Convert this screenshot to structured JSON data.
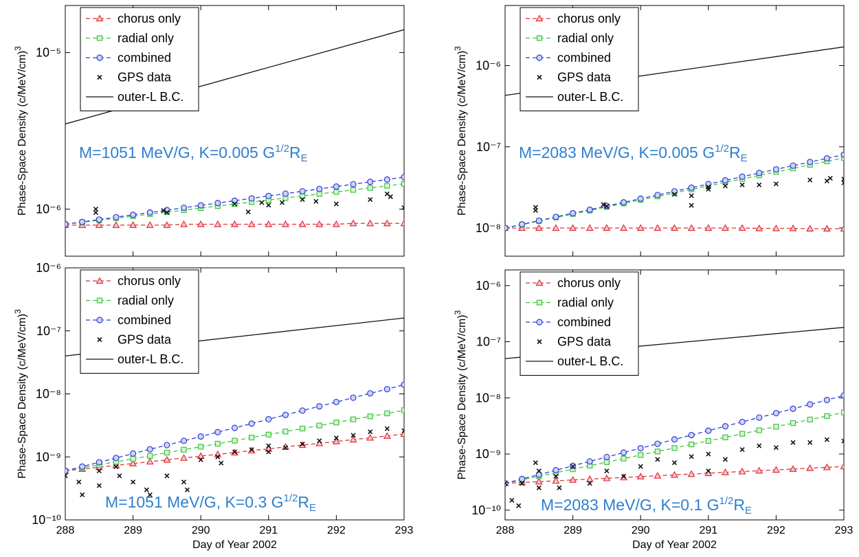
{
  "chart_data": [
    {
      "type": "line",
      "yscale": "log",
      "legend": "upper left",
      "ylabel": "Phase-Space Density  (c/MeV/cm)",
      "ylabel_sup": "3",
      "annotation": {
        "text": "M=1051 MeV/G,  K=0.005 G",
        "sup": "1/2",
        "unit": "R",
        "sub": "E"
      },
      "xlim": [
        288,
        293
      ],
      "xticks": [
        288,
        289,
        290,
        291,
        292,
        293
      ],
      "xtick_labels": false,
      "ylim": [
        5e-07,
        2e-05
      ],
      "yticks": [
        {
          "value": 1e-06,
          "label": "10⁻⁶"
        },
        {
          "value": 1e-05,
          "label": "10⁻⁵"
        }
      ],
      "x": [
        288,
        288.25,
        288.5,
        288.75,
        289,
        289.25,
        289.5,
        289.75,
        290,
        290.25,
        290.5,
        290.75,
        291,
        291.25,
        291.5,
        291.75,
        292,
        292.25,
        292.5,
        292.75,
        293
      ],
      "series": [
        {
          "name": "chorus only",
          "color": "#e0303a",
          "marker": "triangle",
          "line": "dashed",
          "values": [
            7.9e-07,
            7.9e-07,
            7.9e-07,
            7.9e-07,
            7.9e-07,
            7.9e-07,
            7.9e-07,
            8e-07,
            8e-07,
            8e-07,
            8e-07,
            8e-07,
            8e-07,
            8e-07,
            8e-07,
            8e-07,
            8e-07,
            8.1e-07,
            8.1e-07,
            8.1e-07,
            8.1e-07
          ]
        },
        {
          "name": "radial only",
          "color": "#3ec43e",
          "marker": "square",
          "line": "dashed",
          "values": [
            8e-07,
            8.24e-07,
            8.49e-07,
            8.75e-07,
            9.01e-07,
            9.28e-07,
            9.56e-07,
            9.85e-07,
            1.015e-06,
            1.046e-06,
            1.077e-06,
            1.11e-06,
            1.143e-06,
            1.178e-06,
            1.213e-06,
            1.25e-06,
            1.287e-06,
            1.326e-06,
            1.366e-06,
            1.408e-06,
            1.45e-06
          ]
        },
        {
          "name": "combined",
          "color": "#2b3fd6",
          "marker": "circle",
          "line": "dashed",
          "values": [
            8e-07,
            8.28e-07,
            8.57e-07,
            8.88e-07,
            9.19e-07,
            9.51e-07,
            9.85e-07,
            1.02e-06,
            1.056e-06,
            1.093e-06,
            1.131e-06,
            1.171e-06,
            1.213e-06,
            1.255e-06,
            1.3e-06,
            1.345e-06,
            1.393e-06,
            1.442e-06,
            1.493e-06,
            1.545e-06,
            1.6e-06
          ]
        },
        {
          "name": "GPS data",
          "color": "#111111",
          "marker": "x",
          "line": "none",
          "x": [
            288.45,
            288.45,
            289.45,
            289.5,
            290.5,
            290.7,
            290.9,
            291,
            291.2,
            291.5,
            291.7,
            292,
            292.5,
            292.75,
            292.8,
            293
          ],
          "values": [
            1e-06,
            9.5e-07,
            9.8e-07,
            9.5e-07,
            1.08e-06,
            9.6e-07,
            1.1e-06,
            1.06e-06,
            1.1e-06,
            1.15e-06,
            1.12e-06,
            1.08e-06,
            1.15e-06,
            1.25e-06,
            1.2e-06,
            1.02e-06
          ]
        },
        {
          "name": "outer-L B.C.",
          "color": "#111111",
          "marker": "none",
          "line": "solid",
          "x": [
            288,
            293
          ],
          "values": [
            3.5e-06,
            1.4e-05
          ]
        }
      ]
    },
    {
      "type": "line",
      "yscale": "log",
      "legend": "upper left",
      "ylabel": "Phase-Space Density  (c/MeV/cm)",
      "ylabel_sup": "3",
      "annotation": {
        "text": "M=2083 MeV/G,  K=0.005 G",
        "sup": "1/2",
        "unit": "R",
        "sub": "E"
      },
      "xlim": [
        288,
        293
      ],
      "xticks": [
        288,
        289,
        290,
        291,
        292,
        293
      ],
      "xtick_labels": false,
      "ylim": [
        4.5e-09,
        5.5e-06
      ],
      "yticks": [
        {
          "value": 1e-08,
          "label": "10⁻⁸"
        },
        {
          "value": 1e-07,
          "label": "10⁻⁷"
        },
        {
          "value": 1e-06,
          "label": "10⁻⁶"
        }
      ],
      "x": [
        288,
        288.25,
        288.5,
        288.75,
        289,
        289.25,
        289.5,
        289.75,
        290,
        290.25,
        290.5,
        290.75,
        291,
        291.25,
        291.5,
        291.75,
        292,
        292.25,
        292.5,
        292.75,
        293
      ],
      "series": [
        {
          "name": "chorus only",
          "color": "#e0303a",
          "marker": "triangle",
          "line": "dashed",
          "values": [
            1e-08,
            1e-08,
            1e-08,
            1e-08,
            1e-08,
            1e-08,
            1e-08,
            1e-08,
            1e-08,
            1e-08,
            1e-08,
            1e-08,
            1e-08,
            1e-08,
            1e-08,
            9.9e-09,
            9.9e-09,
            9.9e-09,
            9.8e-09,
            9.8e-09,
            9.8e-09
          ]
        },
        {
          "name": "radial only",
          "color": "#3ec43e",
          "marker": "square",
          "line": "dashed",
          "values": [
            1e-08,
            1.1e-08,
            1.22e-08,
            1.35e-08,
            1.49e-08,
            1.64e-08,
            1.82e-08,
            2.01e-08,
            2.22e-08,
            2.45e-08,
            2.7e-08,
            2.99e-08,
            3.3e-08,
            3.65e-08,
            4.03e-08,
            4.45e-08,
            4.91e-08,
            5.43e-08,
            6e-08,
            6.62e-08,
            7.3e-08
          ]
        },
        {
          "name": "combined",
          "color": "#2b3fd6",
          "marker": "circle",
          "line": "dashed",
          "values": [
            1e-08,
            1.11e-08,
            1.23e-08,
            1.37e-08,
            1.52e-08,
            1.68e-08,
            1.87e-08,
            2.07e-08,
            2.3e-08,
            2.55e-08,
            2.83e-08,
            3.14e-08,
            3.48e-08,
            3.86e-08,
            4.29e-08,
            4.76e-08,
            5.28e-08,
            5.86e-08,
            6.5e-08,
            7.21e-08,
            8e-08
          ]
        },
        {
          "name": "GPS data",
          "color": "#111111",
          "marker": "x",
          "line": "none",
          "x": [
            288.45,
            288.45,
            289.45,
            289.5,
            290.5,
            290.75,
            290.75,
            291,
            291,
            291.25,
            291.5,
            291.75,
            292,
            292.5,
            292.75,
            292.8,
            293,
            293
          ],
          "values": [
            1.8e-08,
            1.65e-08,
            1.95e-08,
            1.85e-08,
            2.6e-08,
            2.5e-08,
            1.9e-08,
            3.2e-08,
            3e-08,
            3.3e-08,
            3.4e-08,
            3.4e-08,
            3.5e-08,
            3.9e-08,
            3.8e-08,
            4.1e-08,
            3.6e-08,
            4e-08
          ]
        },
        {
          "name": "outer-L B.C.",
          "color": "#111111",
          "marker": "none",
          "line": "solid",
          "x": [
            288,
            293
          ],
          "values": [
            4.3e-07,
            1.7e-06
          ]
        }
      ]
    },
    {
      "type": "line",
      "yscale": "log",
      "legend": "upper left",
      "ylabel": "Phase-Space Density  (c/MeV/cm)",
      "ylabel_sup": "3",
      "xlabel": "Day of Year 2002",
      "annotation": {
        "text": "M=1051 MeV/G,  K=0.3 G",
        "sup": "1/2",
        "unit": "R",
        "sub": "E"
      },
      "xlim": [
        288,
        293
      ],
      "xticks": [
        288,
        289,
        290,
        291,
        292,
        293
      ],
      "xtick_labels": true,
      "ylim": [
        1e-10,
        1e-06
      ],
      "yticks": [
        {
          "value": 1e-10,
          "label": "10⁻¹⁰"
        },
        {
          "value": 1e-09,
          "label": "10⁻⁹"
        },
        {
          "value": 1e-08,
          "label": "10⁻⁸"
        },
        {
          "value": 1e-07,
          "label": "10⁻⁷"
        },
        {
          "value": 1e-06,
          "label": "10⁻⁶"
        }
      ],
      "x": [
        288,
        288.25,
        288.5,
        288.75,
        289,
        289.25,
        289.5,
        289.75,
        290,
        290.25,
        290.5,
        290.75,
        291,
        291.25,
        291.5,
        291.75,
        292,
        292.25,
        292.5,
        292.75,
        293
      ],
      "series": [
        {
          "name": "chorus only",
          "color": "#e0303a",
          "marker": "triangle",
          "line": "dashed",
          "values": [
            6e-10,
            6.42e-10,
            6.86e-10,
            7.34e-10,
            7.85e-10,
            8.4e-10,
            8.98e-10,
            9.61e-10,
            1.03e-09,
            1.1e-09,
            1.17e-09,
            1.26e-09,
            1.34e-09,
            1.44e-09,
            1.54e-09,
            1.64e-09,
            1.76e-09,
            1.88e-09,
            2.01e-09,
            2.15e-09,
            2.3e-09
          ]
        },
        {
          "name": "radial only",
          "color": "#3ec43e",
          "marker": "square",
          "line": "dashed",
          "values": [
            6e-10,
            6.7e-10,
            7.49e-10,
            8.36e-10,
            9.34e-10,
            1.04e-09,
            1.17e-09,
            1.3e-09,
            1.45e-09,
            1.62e-09,
            1.81e-09,
            2.03e-09,
            2.26e-09,
            2.53e-09,
            2.82e-09,
            3.15e-09,
            3.52e-09,
            3.94e-09,
            4.4e-09,
            4.91e-09,
            5.5e-09
          ]
        },
        {
          "name": "combined",
          "color": "#2b3fd6",
          "marker": "circle",
          "line": "dashed",
          "values": [
            6e-10,
            7.02e-10,
            8.22e-10,
            9.62e-10,
            1.13e-09,
            1.32e-09,
            1.54e-09,
            1.8e-09,
            2.11e-09,
            2.47e-09,
            2.89e-09,
            3.38e-09,
            3.96e-09,
            4.64e-09,
            5.43e-09,
            6.35e-09,
            7.43e-09,
            8.7e-09,
            1.02e-08,
            1.19e-08,
            1.4e-08
          ]
        },
        {
          "name": "GPS data",
          "color": "#111111",
          "marker": "x",
          "line": "none",
          "x": [
            288,
            288.2,
            288.25,
            288.5,
            288.5,
            288.75,
            288.8,
            289,
            289.2,
            289.25,
            289.5,
            289.75,
            289.8,
            290,
            290.25,
            290.3,
            290.5,
            290.75,
            291,
            291,
            291.25,
            291.5,
            291.75,
            292,
            292.25,
            292.5,
            292.75,
            293
          ],
          "values": [
            5e-10,
            4e-10,
            2.5e-10,
            6e-10,
            3.5e-10,
            7e-10,
            5e-10,
            4e-10,
            3e-10,
            2.5e-10,
            5e-10,
            4e-10,
            3e-10,
            9e-10,
            1e-09,
            8e-10,
            1.2e-09,
            1.3e-09,
            1.2e-09,
            1.5e-09,
            1.4e-09,
            1.6e-09,
            1.8e-09,
            2e-09,
            2.2e-09,
            2.5e-09,
            2.8e-09,
            2.6e-09
          ]
        },
        {
          "name": "outer-L B.C.",
          "color": "#111111",
          "marker": "none",
          "line": "solid",
          "x": [
            288,
            293
          ],
          "values": [
            4e-08,
            1.6e-07
          ]
        }
      ]
    },
    {
      "type": "line",
      "yscale": "log",
      "legend": "upper left",
      "ylabel": "Phase-Space Density  (c/MeV/cm)",
      "ylabel_sup": "3",
      "xlabel": "Day of Year 2002",
      "annotation": {
        "text": "M=2083 MeV/G,  K=0.1 G",
        "sup": "1/2",
        "unit": "R",
        "sub": "E"
      },
      "xlim": [
        288,
        293
      ],
      "xticks": [
        288,
        289,
        290,
        291,
        292,
        293
      ],
      "xtick_labels": true,
      "ylim": [
        6.7e-11,
        1.9e-06
      ],
      "yticks": [
        {
          "value": 1e-10,
          "label": "10⁻¹⁰"
        },
        {
          "value": 1e-09,
          "label": "10⁻⁹"
        },
        {
          "value": 1e-08,
          "label": "10⁻⁸"
        },
        {
          "value": 1e-07,
          "label": "10⁻⁷"
        },
        {
          "value": 1e-06,
          "label": "10⁻⁶"
        }
      ],
      "x": [
        288,
        288.25,
        288.5,
        288.75,
        289,
        289.25,
        289.5,
        289.75,
        290,
        290.25,
        290.5,
        290.75,
        291,
        291.25,
        291.5,
        291.75,
        292,
        292.25,
        292.5,
        292.75,
        293
      ],
      "series": [
        {
          "name": "chorus only",
          "color": "#e0303a",
          "marker": "triangle",
          "line": "dashed",
          "values": [
            3e-10,
            3.11e-10,
            3.22e-10,
            3.33e-10,
            3.45e-10,
            3.57e-10,
            3.69e-10,
            3.82e-10,
            3.96e-10,
            4.1e-10,
            4.24e-10,
            4.39e-10,
            4.55e-10,
            4.71e-10,
            4.87e-10,
            5.04e-10,
            5.22e-10,
            5.4e-10,
            5.6e-10,
            5.79e-10,
            6e-10
          ]
        },
        {
          "name": "radial only",
          "color": "#3ec43e",
          "marker": "square",
          "line": "dashed",
          "values": [
            3e-10,
            3.47e-10,
            4.01e-10,
            4.64e-10,
            5.36e-10,
            6.2e-10,
            7.17e-10,
            8.29e-10,
            9.59e-10,
            1.11e-09,
            1.28e-09,
            1.48e-09,
            1.71e-09,
            1.98e-09,
            2.29e-09,
            2.65e-09,
            3.07e-09,
            3.55e-09,
            4.1e-09,
            4.74e-09,
            5.5e-09
          ]
        },
        {
          "name": "combined",
          "color": "#2b3fd6",
          "marker": "circle",
          "line": "dashed",
          "values": [
            3e-10,
            3.59e-10,
            4.3e-10,
            5.15e-10,
            6.16e-10,
            7.38e-10,
            8.83e-10,
            1.06e-09,
            1.27e-09,
            1.52e-09,
            1.82e-09,
            2.17e-09,
            2.6e-09,
            3.12e-09,
            3.73e-09,
            4.46e-09,
            5.34e-09,
            6.4e-09,
            7.66e-09,
            9.17e-09,
            1.1e-08
          ]
        },
        {
          "name": "GPS data",
          "color": "#111111",
          "marker": "x",
          "line": "none",
          "x": [
            288,
            288.1,
            288.2,
            288.25,
            288.45,
            288.5,
            288.5,
            288.75,
            288.8,
            289,
            289.25,
            289.5,
            289.75,
            290,
            290.25,
            290.5,
            290.75,
            291,
            291,
            291.25,
            291.5,
            291.75,
            292,
            292.25,
            292.5,
            292.75,
            293
          ],
          "values": [
            3e-10,
            1.5e-10,
            1.2e-10,
            3e-10,
            7e-10,
            5e-10,
            2.5e-10,
            4e-10,
            2.5e-10,
            6e-10,
            3e-10,
            5e-10,
            4e-10,
            6e-10,
            8e-10,
            7e-10,
            9e-10,
            1e-09,
            5e-10,
            8e-10,
            1.2e-09,
            1.4e-09,
            1.3e-09,
            1.6e-09,
            1.6e-09,
            1.8e-09,
            1.7e-09
          ]
        },
        {
          "name": "outer-L B.C.",
          "color": "#111111",
          "marker": "none",
          "line": "solid",
          "x": [
            288,
            293
          ],
          "values": [
            5e-08,
            1.8e-07
          ]
        }
      ]
    }
  ]
}
